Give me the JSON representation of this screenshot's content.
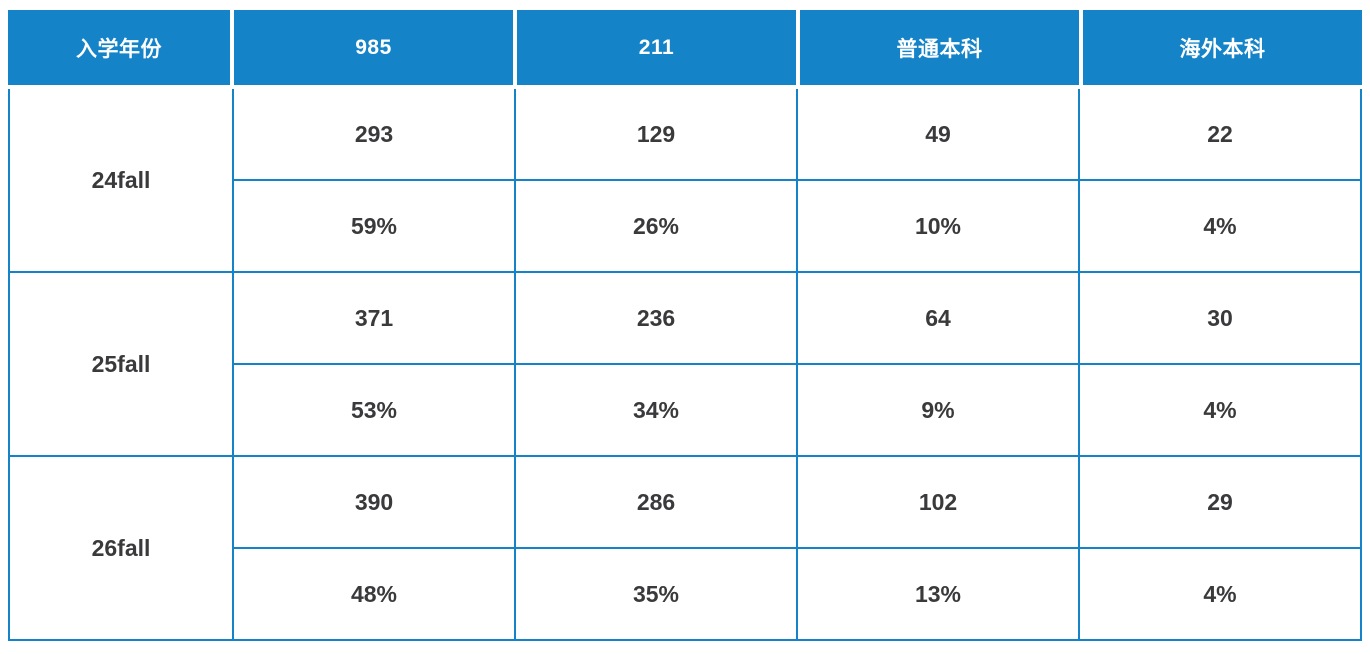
{
  "colors": {
    "accent_blue": "#1583C8",
    "header_text": "#FFFFFF",
    "cell_text": "#3A3A3C",
    "cell_bg": "#FFFFFF"
  },
  "chart_data": {
    "type": "table",
    "title": "",
    "columns": [
      "入学年份",
      "985",
      "211",
      "普通本科",
      "海外本科"
    ],
    "groups": [
      {
        "year": "24fall",
        "counts": [
          293,
          129,
          49,
          22
        ],
        "percents": [
          "59%",
          "26%",
          "10%",
          "4%"
        ]
      },
      {
        "year": "25fall",
        "counts": [
          371,
          236,
          64,
          30
        ],
        "percents": [
          "53%",
          "34%",
          "9%",
          "4%"
        ]
      },
      {
        "year": "26fall",
        "counts": [
          390,
          286,
          102,
          29
        ],
        "percents": [
          "48%",
          "35%",
          "13%",
          "4%"
        ]
      }
    ],
    "layout": {
      "header_style": "solid blue fill, white bold text, white gaps between header cells",
      "body_style": "white cells, 2px blue grid borders, no top border under header",
      "year_cell": "spans count row and percent row"
    }
  }
}
